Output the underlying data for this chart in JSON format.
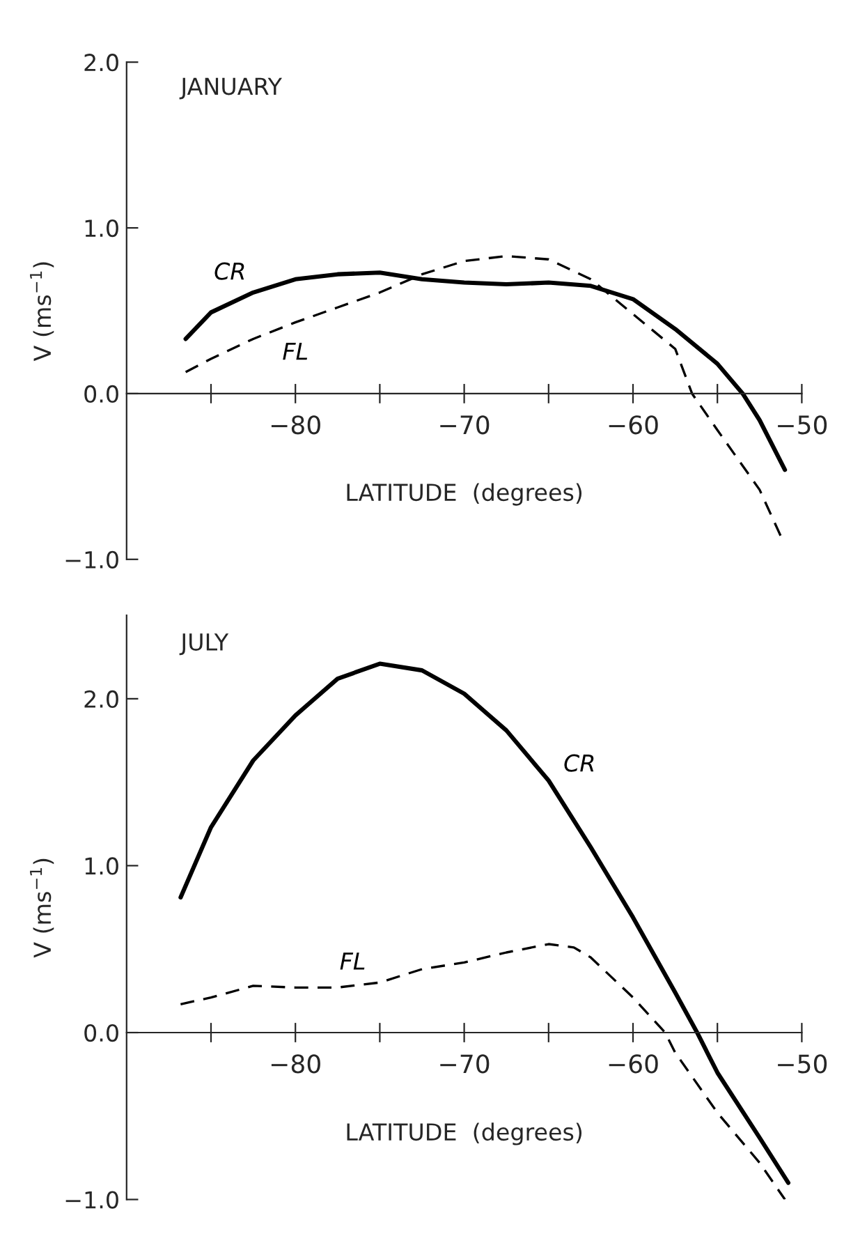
{
  "chart_data": [
    {
      "type": "line",
      "title": "JANUARY",
      "xlabel": "LATITUDE  (degrees)",
      "ylabel": "V (ms$^{−1}$)",
      "xlim": [
        -90,
        -50
      ],
      "xticks": [
        {
          "value": -85,
          "label": null
        },
        {
          "value": -80,
          "label": "−80"
        },
        {
          "value": -75,
          "label": null
        },
        {
          "value": -70,
          "label": "−70"
        },
        {
          "value": -65,
          "label": null
        },
        {
          "value": -60,
          "label": "−60"
        },
        {
          "value": -55,
          "label": null
        },
        {
          "value": -50,
          "label": "−50"
        }
      ],
      "ylim": [
        -1,
        2
      ],
      "yticks": [
        {
          "value": -1,
          "label": "−1.0"
        },
        {
          "value": 0,
          "label": "0.0"
        },
        {
          "value": 1,
          "label": "1.0"
        },
        {
          "value": 2,
          "label": "2.0"
        }
      ],
      "grid": false,
      "legend": false,
      "series": [
        {
          "name": "CR",
          "color": "#000000",
          "line_style": "solid",
          "x": [
            -86.5,
            -85,
            -82.5,
            -80,
            -77.5,
            -75,
            -72.5,
            -70,
            -67.5,
            -65,
            -62.5,
            -60,
            -57.5,
            -55,
            -53.5,
            -52.5,
            -51
          ],
          "values": [
            0.33,
            0.49,
            0.61,
            0.69,
            0.72,
            0.73,
            0.69,
            0.67,
            0.66,
            0.67,
            0.65,
            0.57,
            0.39,
            0.18,
            0.0,
            -0.16,
            -0.46
          ]
        },
        {
          "name": "FL",
          "color": "#000000",
          "line_style": "dashed",
          "x": [
            -86.5,
            -85,
            -82.5,
            -80,
            -77.5,
            -75,
            -72.5,
            -70,
            -67.5,
            -65,
            -62.5,
            -60,
            -57.5,
            -56.5,
            -55,
            -52.5,
            -51.2
          ],
          "values": [
            0.13,
            0.21,
            0.33,
            0.43,
            0.52,
            0.61,
            0.72,
            0.8,
            0.83,
            0.81,
            0.69,
            0.48,
            0.27,
            0.0,
            -0.22,
            -0.58,
            -0.87
          ]
        }
      ]
    },
    {
      "type": "line",
      "title": "JULY",
      "xlabel": "LATITUDE  (degrees)",
      "ylabel": "V (ms$^{−1}$)",
      "xlim": [
        -90,
        -50
      ],
      "xticks": [
        {
          "value": -85,
          "label": null
        },
        {
          "value": -80,
          "label": "−80"
        },
        {
          "value": -75,
          "label": null
        },
        {
          "value": -70,
          "label": "−70"
        },
        {
          "value": -65,
          "label": null
        },
        {
          "value": -60,
          "label": "−60"
        },
        {
          "value": -55,
          "label": null
        },
        {
          "value": -50,
          "label": "−50"
        }
      ],
      "ylim": [
        -1,
        2.5
      ],
      "yticks": [
        {
          "value": -1,
          "label": "−1.0"
        },
        {
          "value": 0,
          "label": "0.0"
        },
        {
          "value": 1,
          "label": "1.0"
        },
        {
          "value": 2,
          "label": "2.0"
        }
      ],
      "grid": false,
      "legend": false,
      "series": [
        {
          "name": "CR",
          "color": "#000000",
          "line_style": "solid",
          "x": [
            -86.8,
            -85,
            -82.5,
            -80,
            -77.5,
            -75,
            -72.5,
            -70,
            -67.5,
            -65,
            -62.5,
            -60,
            -57.5,
            -56.2,
            -55,
            -52.5,
            -50.8
          ],
          "values": [
            0.81,
            1.23,
            1.63,
            1.9,
            2.12,
            2.21,
            2.17,
            2.03,
            1.81,
            1.51,
            1.11,
            0.69,
            0.24,
            0.0,
            -0.24,
            -0.63,
            -0.9
          ]
        },
        {
          "name": "FL",
          "color": "#000000",
          "line_style": "dashed",
          "x": [
            -86.8,
            -85,
            -82.5,
            -80,
            -77.5,
            -75,
            -72.5,
            -70,
            -67.5,
            -65,
            -63.5,
            -62.5,
            -60,
            -58.1,
            -57.5,
            -55,
            -52.5,
            -51
          ],
          "values": [
            0.17,
            0.21,
            0.28,
            0.27,
            0.27,
            0.3,
            0.38,
            0.42,
            0.48,
            0.53,
            0.51,
            0.45,
            0.21,
            0.0,
            -0.12,
            -0.48,
            -0.78,
            -1.0
          ]
        }
      ]
    }
  ]
}
